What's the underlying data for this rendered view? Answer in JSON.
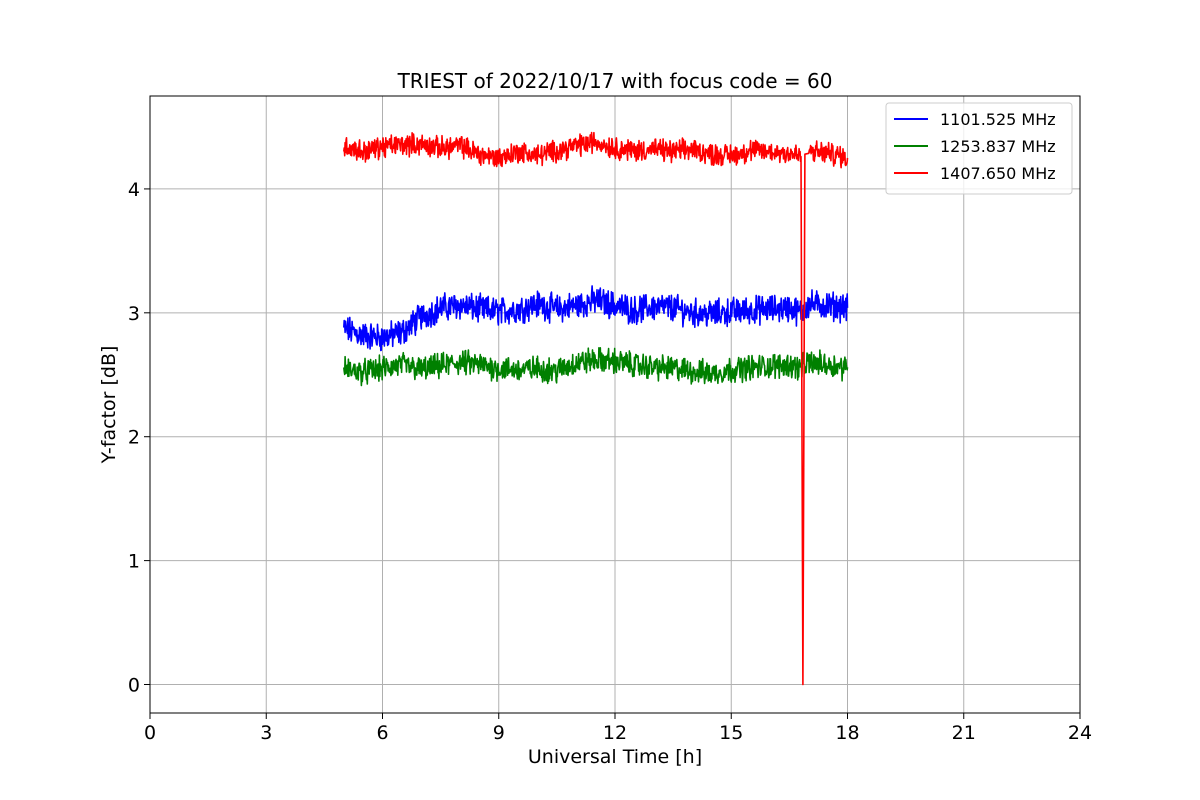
{
  "chart_data": {
    "type": "line",
    "title": "TRIEST of 2022/10/17 with focus code = 60",
    "xlabel": "Universal Time [h]",
    "ylabel": "Y-factor [dB]",
    "xlim": [
      0,
      24
    ],
    "ylim": [
      -0.23,
      4.75
    ],
    "xticks": [
      0,
      3,
      6,
      9,
      12,
      15,
      18,
      21,
      24
    ],
    "yticks": [
      0,
      1,
      2,
      3,
      4
    ],
    "grid": true,
    "legend_position": "top-right",
    "series": [
      {
        "name": "1101.525 MHz",
        "color": "#0000ff",
        "x": [
          5.0,
          5.5,
          6.0,
          6.5,
          7.0,
          7.5,
          8.0,
          8.5,
          9.0,
          9.5,
          10.0,
          10.5,
          11.0,
          11.5,
          12.0,
          12.5,
          13.0,
          13.5,
          14.0,
          14.5,
          15.0,
          15.5,
          16.0,
          16.5,
          16.8,
          17.0,
          17.5,
          18.0
        ],
        "y": [
          2.87,
          2.82,
          2.8,
          2.84,
          2.97,
          3.04,
          3.06,
          3.03,
          3.01,
          3.03,
          3.07,
          3.03,
          3.06,
          3.1,
          3.06,
          3.02,
          3.05,
          3.04,
          3.0,
          2.99,
          3.01,
          3.02,
          3.03,
          3.04,
          3.0,
          3.07,
          3.06,
          3.04
        ],
        "noise": 0.09
      },
      {
        "name": "1253.837 MHz",
        "color": "#008000",
        "x": [
          5.0,
          5.5,
          6.0,
          6.5,
          7.0,
          7.5,
          8.0,
          8.5,
          9.0,
          9.5,
          10.0,
          10.5,
          11.0,
          11.5,
          12.0,
          12.5,
          13.0,
          13.5,
          14.0,
          14.5,
          15.0,
          15.5,
          16.0,
          16.5,
          16.8,
          17.0,
          17.5,
          18.0
        ],
        "y": [
          2.55,
          2.52,
          2.55,
          2.58,
          2.54,
          2.57,
          2.6,
          2.58,
          2.55,
          2.54,
          2.55,
          2.53,
          2.6,
          2.62,
          2.61,
          2.58,
          2.56,
          2.55,
          2.53,
          2.51,
          2.54,
          2.56,
          2.57,
          2.58,
          2.55,
          2.6,
          2.58,
          2.56
        ],
        "noise": 0.08
      },
      {
        "name": "1407.650 MHz",
        "color": "#ff0000",
        "x": [
          5.0,
          5.5,
          6.0,
          6.5,
          7.0,
          7.5,
          8.0,
          8.5,
          9.0,
          9.5,
          10.0,
          10.5,
          11.0,
          11.5,
          12.0,
          12.5,
          13.0,
          13.5,
          14.0,
          14.5,
          15.0,
          15.5,
          16.0,
          16.5,
          16.8,
          16.85,
          16.9,
          17.0,
          17.5,
          18.0
        ],
        "y": [
          4.35,
          4.3,
          4.34,
          4.36,
          4.36,
          4.33,
          4.35,
          4.28,
          4.25,
          4.3,
          4.27,
          4.31,
          4.35,
          4.38,
          4.33,
          4.31,
          4.32,
          4.3,
          4.32,
          4.28,
          4.27,
          4.31,
          4.3,
          4.29,
          4.26,
          0.0,
          4.28,
          4.3,
          4.29,
          4.25
        ],
        "noise": 0.07
      }
    ]
  }
}
